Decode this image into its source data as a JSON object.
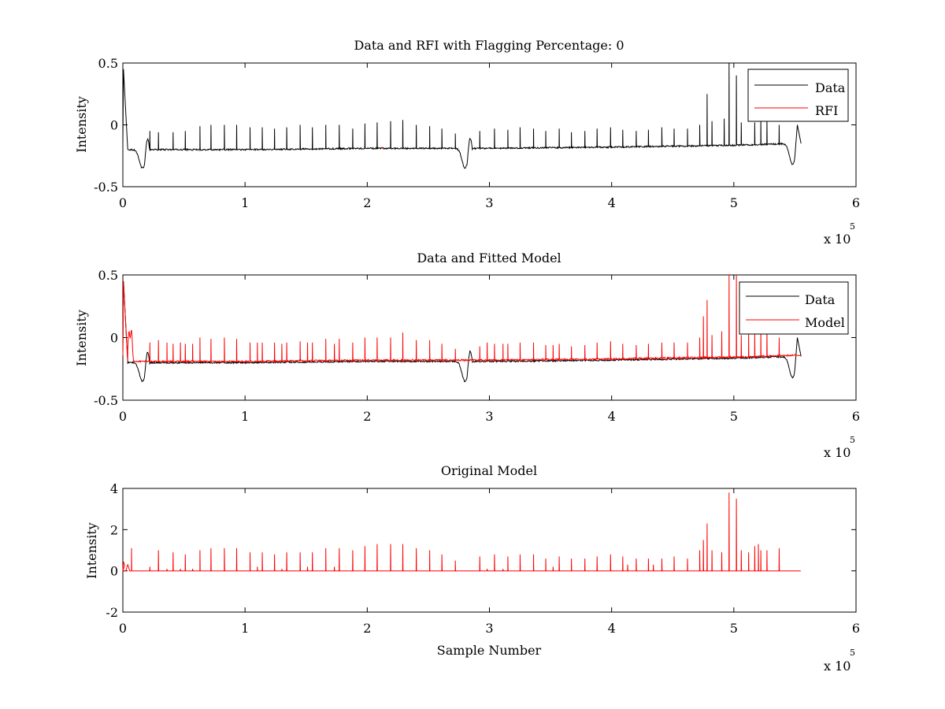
{
  "chart_data": [
    {
      "type": "line",
      "title": "Data and RFI with Flagging Percentage: 0",
      "xlabel": "",
      "ylabel": "Intensity",
      "xlim": [
        0,
        6
      ],
      "ylim": [
        -0.5,
        0.5
      ],
      "x_ticks": [
        0,
        1,
        2,
        3,
        4,
        5,
        6
      ],
      "y_ticks": [
        -0.5,
        0,
        0.5
      ],
      "x_tick_labels": [
        "0",
        "1",
        "2",
        "3",
        "4",
        "5",
        "6"
      ],
      "y_tick_labels": [
        "-0.5",
        "0",
        "0.5"
      ],
      "x_exponent": "x 10",
      "x_exponent_power": "5",
      "legend": {
        "position": "top-right",
        "entries": [
          "Data",
          "RFI"
        ]
      },
      "series": [
        {
          "name": "Data",
          "color": "#000000",
          "baseline": [
            [
              0.04,
              -0.2
            ],
            [
              1,
              -0.2
            ],
            [
              2,
              -0.19
            ],
            [
              3,
              -0.19
            ],
            [
              4,
              -0.18
            ],
            [
              5,
              -0.165
            ],
            [
              5.5,
              -0.15
            ]
          ],
          "features": [
            [
              0.0,
              0.45,
              "peak"
            ],
            [
              0.16,
              -0.35,
              "dip"
            ],
            [
              2.8,
              -0.35,
              "dip"
            ],
            [
              5.48,
              -0.32,
              "dip"
            ],
            [
              5.55,
              -0.0,
              "end"
            ]
          ],
          "spikes": [
            [
              0.22,
              -0.05
            ],
            [
              0.29,
              -0.06
            ],
            [
              0.41,
              -0.06
            ],
            [
              0.51,
              -0.05
            ],
            [
              0.63,
              -0.01
            ],
            [
              0.72,
              0.0
            ],
            [
              0.83,
              0.0
            ],
            [
              0.93,
              0.0
            ],
            [
              1.04,
              -0.02
            ],
            [
              1.14,
              -0.02
            ],
            [
              1.24,
              -0.03
            ],
            [
              1.34,
              -0.02
            ],
            [
              1.45,
              0.0
            ],
            [
              1.55,
              -0.02
            ],
            [
              1.66,
              0.0
            ],
            [
              1.77,
              0.0
            ],
            [
              1.88,
              -0.03
            ],
            [
              1.98,
              0.01
            ],
            [
              2.08,
              0.02
            ],
            [
              2.19,
              0.03
            ],
            [
              2.29,
              0.04
            ],
            [
              2.4,
              0.0
            ],
            [
              2.51,
              -0.01
            ],
            [
              2.61,
              -0.03
            ],
            [
              2.72,
              -0.07
            ],
            [
              2.92,
              -0.05
            ],
            [
              3.04,
              -0.03
            ],
            [
              3.15,
              -0.04
            ],
            [
              3.25,
              -0.02
            ],
            [
              3.36,
              -0.03
            ],
            [
              3.46,
              -0.05
            ],
            [
              3.57,
              -0.03
            ],
            [
              3.67,
              -0.06
            ],
            [
              3.78,
              -0.05
            ],
            [
              3.88,
              -0.03
            ],
            [
              3.99,
              -0.02
            ],
            [
              4.09,
              -0.04
            ],
            [
              4.2,
              -0.05
            ],
            [
              4.3,
              -0.04
            ],
            [
              4.41,
              -0.02
            ],
            [
              4.51,
              -0.03
            ],
            [
              4.62,
              -0.03
            ],
            [
              4.72,
              0.0
            ],
            [
              4.78,
              0.25
            ],
            [
              4.82,
              0.03
            ],
            [
              4.92,
              0.05
            ],
            [
              4.96,
              0.5
            ],
            [
              5.02,
              0.4
            ],
            [
              5.06,
              0.02
            ],
            [
              5.17,
              0.02
            ],
            [
              5.22,
              0.07
            ],
            [
              5.27,
              0.05
            ],
            [
              5.37,
              0.0
            ]
          ]
        },
        {
          "name": "RFI",
          "color": "#ff0000",
          "points": [
            [
              2.12,
              -0.18
            ],
            [
              2.14,
              -0.2
            ]
          ]
        }
      ]
    },
    {
      "type": "line",
      "title": "Data and Fitted Model",
      "xlabel": "",
      "ylabel": "Intensity",
      "xlim": [
        0,
        6
      ],
      "ylim": [
        -0.5,
        0.5
      ],
      "x_ticks": [
        0,
        1,
        2,
        3,
        4,
        5,
        6
      ],
      "y_ticks": [
        -0.5,
        0,
        0.5
      ],
      "x_tick_labels": [
        "0",
        "1",
        "2",
        "3",
        "4",
        "5",
        "6"
      ],
      "y_tick_labels": [
        "-0.5",
        "0",
        "0.5"
      ],
      "x_exponent": "x 10",
      "x_exponent_power": "5",
      "legend": {
        "position": "top-right",
        "entries": [
          "Data",
          "Model"
        ]
      },
      "series": [
        {
          "name": "Data",
          "color": "#000000",
          "baseline": [
            [
              0.04,
              -0.2
            ],
            [
              1,
              -0.2
            ],
            [
              2,
              -0.19
            ],
            [
              3,
              -0.19
            ],
            [
              4,
              -0.18
            ],
            [
              5,
              -0.165
            ],
            [
              5.5,
              -0.15
            ]
          ],
          "features": [
            [
              0.0,
              0.45,
              "peak"
            ],
            [
              0.16,
              -0.35,
              "dip"
            ],
            [
              2.8,
              -0.35,
              "dip"
            ],
            [
              5.48,
              -0.32,
              "dip"
            ],
            [
              5.55,
              -0.0,
              "end"
            ]
          ]
        },
        {
          "name": "Model",
          "color": "#ff0000",
          "baseline": [
            [
              0.04,
              -0.19
            ],
            [
              1,
              -0.19
            ],
            [
              2,
              -0.18
            ],
            [
              3,
              -0.18
            ],
            [
              4,
              -0.17
            ],
            [
              5,
              -0.155
            ],
            [
              5.55,
              -0.14
            ]
          ],
          "features": [
            [
              0.0,
              0.45,
              "peak"
            ],
            [
              0.05,
              0.05,
              "bump"
            ],
            [
              0.07,
              0.07,
              "bump"
            ]
          ],
          "spikes": [
            [
              0.22,
              -0.04
            ],
            [
              0.29,
              -0.02
            ],
            [
              0.36,
              -0.04
            ],
            [
              0.41,
              -0.05
            ],
            [
              0.47,
              -0.04
            ],
            [
              0.51,
              -0.05
            ],
            [
              0.57,
              -0.05
            ],
            [
              0.63,
              0.0
            ],
            [
              0.72,
              -0.01
            ],
            [
              0.83,
              0.0
            ],
            [
              0.93,
              -0.01
            ],
            [
              1.04,
              -0.04
            ],
            [
              1.1,
              -0.04
            ],
            [
              1.14,
              -0.04
            ],
            [
              1.24,
              -0.04
            ],
            [
              1.3,
              -0.05
            ],
            [
              1.34,
              -0.04
            ],
            [
              1.45,
              -0.03
            ],
            [
              1.51,
              -0.04
            ],
            [
              1.55,
              -0.04
            ],
            [
              1.66,
              -0.01
            ],
            [
              1.73,
              -0.05
            ],
            [
              1.77,
              -0.01
            ],
            [
              1.88,
              -0.04
            ],
            [
              1.98,
              -0.0
            ],
            [
              2.08,
              0.0
            ],
            [
              2.19,
              0.0
            ],
            [
              2.29,
              0.04
            ],
            [
              2.4,
              -0.02
            ],
            [
              2.51,
              -0.02
            ],
            [
              2.61,
              -0.05
            ],
            [
              2.72,
              -0.09
            ],
            [
              2.92,
              -0.07
            ],
            [
              2.98,
              -0.04
            ],
            [
              3.04,
              -0.05
            ],
            [
              3.11,
              -0.05
            ],
            [
              3.15,
              -0.05
            ],
            [
              3.25,
              -0.04
            ],
            [
              3.36,
              -0.04
            ],
            [
              3.46,
              -0.06
            ],
            [
              3.52,
              -0.06
            ],
            [
              3.57,
              -0.05
            ],
            [
              3.67,
              -0.07
            ],
            [
              3.78,
              -0.06
            ],
            [
              3.88,
              -0.04
            ],
            [
              3.99,
              -0.03
            ],
            [
              4.09,
              -0.05
            ],
            [
              4.2,
              -0.06
            ],
            [
              4.3,
              -0.05
            ],
            [
              4.41,
              -0.04
            ],
            [
              4.51,
              -0.04
            ],
            [
              4.62,
              -0.04
            ],
            [
              4.72,
              -0.0
            ],
            [
              4.75,
              0.17
            ],
            [
              4.78,
              0.3
            ],
            [
              4.82,
              0.02
            ],
            [
              4.9,
              0.05
            ],
            [
              4.96,
              0.5
            ],
            [
              5.02,
              0.5
            ],
            [
              5.06,
              0.02
            ],
            [
              5.12,
              0.05
            ],
            [
              5.17,
              0.05
            ],
            [
              5.22,
              0.1
            ],
            [
              5.27,
              0.07
            ],
            [
              5.37,
              0.0
            ]
          ]
        }
      ]
    },
    {
      "type": "line",
      "title": "Original Model",
      "xlabel": "Sample Number",
      "ylabel": "Intensity",
      "xlim": [
        0,
        6
      ],
      "ylim": [
        -2,
        4
      ],
      "x_ticks": [
        0,
        1,
        2,
        3,
        4,
        5,
        6
      ],
      "y_ticks": [
        -2,
        0,
        2,
        4
      ],
      "x_tick_labels": [
        "0",
        "1",
        "2",
        "3",
        "4",
        "5",
        "6"
      ],
      "y_tick_labels": [
        "-2",
        "0",
        "2",
        "4"
      ],
      "x_exponent": "x 10",
      "x_exponent_power": "5",
      "series": [
        {
          "name": "Model",
          "color": "#ff0000",
          "baseline": [
            [
              0.0,
              0.0
            ],
            [
              5.55,
              0.0
            ]
          ],
          "features": [
            [
              0.0,
              0.45,
              "peak"
            ],
            [
              0.04,
              0.3,
              "bump"
            ]
          ],
          "spikes": [
            [
              0.07,
              1.1
            ],
            [
              0.22,
              0.2
            ],
            [
              0.29,
              1.0
            ],
            [
              0.36,
              0.1
            ],
            [
              0.41,
              0.9
            ],
            [
              0.47,
              0.1
            ],
            [
              0.51,
              0.8
            ],
            [
              0.57,
              0.1
            ],
            [
              0.63,
              1.0
            ],
            [
              0.72,
              1.1
            ],
            [
              0.83,
              1.1
            ],
            [
              0.93,
              1.1
            ],
            [
              1.04,
              0.9
            ],
            [
              1.1,
              0.2
            ],
            [
              1.14,
              0.9
            ],
            [
              1.24,
              0.8
            ],
            [
              1.3,
              0.1
            ],
            [
              1.34,
              0.9
            ],
            [
              1.45,
              0.9
            ],
            [
              1.51,
              0.2
            ],
            [
              1.55,
              0.9
            ],
            [
              1.66,
              1.1
            ],
            [
              1.73,
              0.2
            ],
            [
              1.77,
              1.1
            ],
            [
              1.88,
              1.0
            ],
            [
              1.98,
              1.2
            ],
            [
              2.08,
              1.3
            ],
            [
              2.19,
              1.3
            ],
            [
              2.29,
              1.3
            ],
            [
              2.4,
              1.1
            ],
            [
              2.51,
              1.0
            ],
            [
              2.61,
              0.8
            ],
            [
              2.72,
              0.5
            ],
            [
              2.92,
              0.7
            ],
            [
              2.98,
              0.1
            ],
            [
              3.04,
              0.8
            ],
            [
              3.11,
              0.1
            ],
            [
              3.15,
              0.7
            ],
            [
              3.25,
              0.8
            ],
            [
              3.36,
              0.8
            ],
            [
              3.46,
              0.6
            ],
            [
              3.52,
              0.2
            ],
            [
              3.57,
              0.7
            ],
            [
              3.67,
              0.6
            ],
            [
              3.78,
              0.6
            ],
            [
              3.88,
              0.7
            ],
            [
              3.99,
              0.8
            ],
            [
              4.09,
              0.7
            ],
            [
              4.13,
              0.3
            ],
            [
              4.2,
              0.6
            ],
            [
              4.3,
              0.6
            ],
            [
              4.34,
              0.3
            ],
            [
              4.41,
              0.6
            ],
            [
              4.51,
              0.7
            ],
            [
              4.62,
              0.6
            ],
            [
              4.72,
              1.0
            ],
            [
              4.75,
              1.5
            ],
            [
              4.78,
              2.3
            ],
            [
              4.82,
              1.0
            ],
            [
              4.9,
              0.9
            ],
            [
              4.96,
              3.8
            ],
            [
              5.02,
              3.5
            ],
            [
              5.06,
              1.0
            ],
            [
              5.12,
              0.9
            ],
            [
              5.17,
              1.2
            ],
            [
              5.2,
              1.3
            ],
            [
              5.22,
              1.0
            ],
            [
              5.27,
              1.0
            ],
            [
              5.37,
              1.1
            ]
          ]
        }
      ]
    }
  ]
}
